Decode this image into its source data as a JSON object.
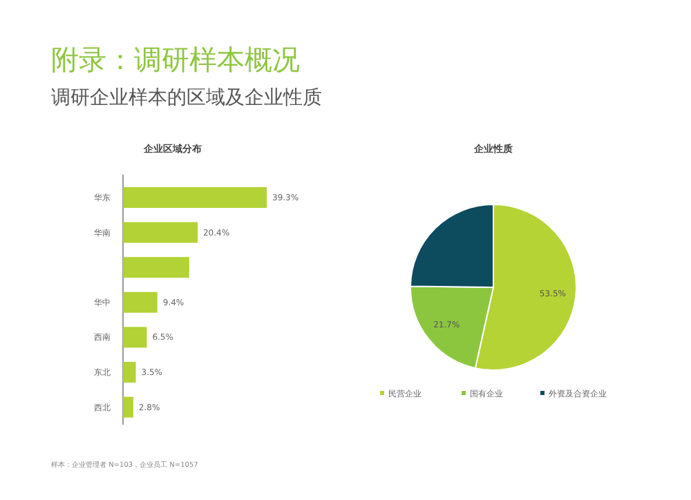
{
  "chart_data": [
    {
      "type": "other",
      "title": "附录：调研样本概况",
      "subtitle": "调研企业样本的区域及企业性质",
      "annotations": [
        "样本：企业管理者 N=103，企业员工 N=1057"
      ]
    },
    {
      "type": "bar",
      "orientation": "horizontal",
      "title": "企业区域分布",
      "categories": [
        "华东",
        "华南",
        null,
        "华中",
        "西南",
        "东北",
        "西北"
      ],
      "values": [
        39.3,
        20.4,
        18.1,
        9.4,
        6.5,
        3.5,
        2.8
      ],
      "value_labels": [
        "39.3%",
        "20.4%",
        null,
        "9.4%",
        "6.5%",
        "3.5%",
        "2.8%"
      ],
      "color": "#b2d235"
    },
    {
      "type": "pie",
      "title": "企业性质",
      "categories": [
        "民营企业",
        "国有企业",
        "外资及合资企业"
      ],
      "values": [
        53.5,
        21.7,
        24.8
      ],
      "value_labels": [
        "53.5%",
        "21.7%",
        null
      ],
      "colors": [
        "#b5d334",
        "#8cc63f",
        "#0d4b5e"
      ],
      "legend": "bottom"
    }
  ]
}
